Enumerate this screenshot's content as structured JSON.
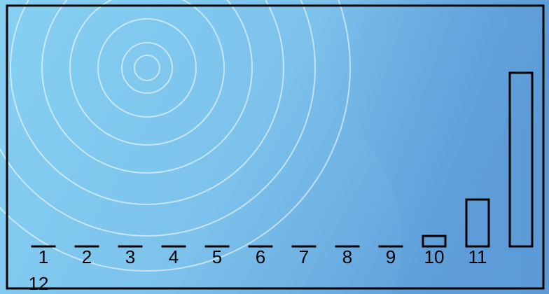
{
  "chart_data": {
    "type": "bar",
    "categories": [
      "1",
      "2",
      "3",
      "4",
      "5",
      "6",
      "7",
      "8",
      "9",
      "10",
      "11",
      "12"
    ],
    "values": [
      0,
      0,
      0,
      0,
      0,
      0,
      0,
      0,
      0,
      6,
      27,
      100
    ]
  }
}
